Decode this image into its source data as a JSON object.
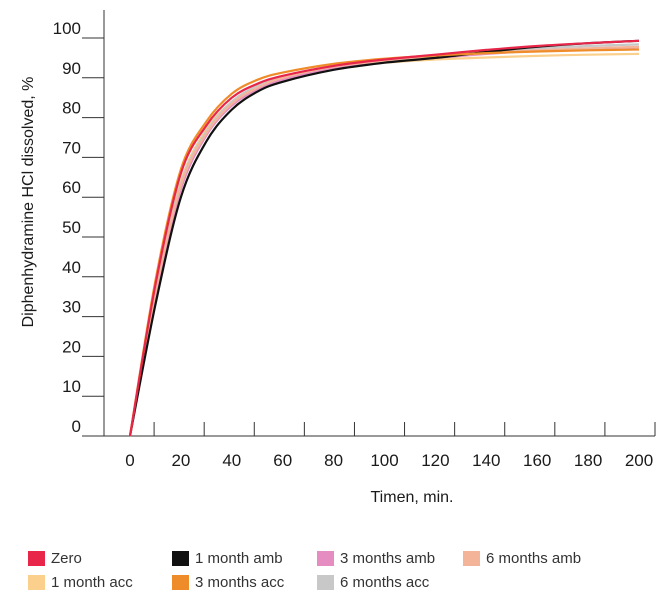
{
  "chart_data": {
    "type": "line",
    "title": "",
    "xlabel": "Timen, min.",
    "ylabel": "Diphenhydramine HCl dissolved, %",
    "xlim": [
      0,
      200
    ],
    "ylim": [
      0,
      100
    ],
    "x_ticks": [
      "0",
      "20",
      "40",
      "60",
      "80",
      "100",
      "120",
      "140",
      "160",
      "180",
      "200"
    ],
    "y_ticks": [
      "0",
      "10",
      "20",
      "30",
      "40",
      "50",
      "60",
      "70",
      "80",
      "90",
      "100"
    ],
    "grid": false,
    "legend_position": "bottom",
    "series": [
      {
        "name": "Zero",
        "color": "#e8264a",
        "x": [
          0,
          10,
          20,
          30,
          40,
          50,
          60,
          80,
          100,
          120,
          140,
          160,
          180,
          200
        ],
        "y": [
          0,
          38,
          66,
          78,
          85,
          88.5,
          90.5,
          93,
          94.6,
          95.8,
          97,
          98,
          98.7,
          99.3
        ]
      },
      {
        "name": "1 month amb",
        "color": "#111111",
        "x": [
          0,
          10,
          20,
          30,
          40,
          50,
          60,
          80,
          100,
          120,
          140,
          160,
          180,
          200
        ],
        "y": [
          0,
          33,
          60,
          74,
          82,
          86.5,
          89,
          92,
          93.8,
          95,
          96.5,
          97.8,
          98.7,
          99.3
        ]
      },
      {
        "name": "3 months amb",
        "color": "#e58cc0",
        "x": [
          0,
          10,
          20,
          30,
          40,
          50,
          60,
          80,
          100,
          120,
          140,
          160,
          180,
          200
        ],
        "y": [
          0,
          35,
          62,
          75.5,
          83,
          87,
          89.5,
          92.5,
          94,
          95,
          96,
          96.8,
          97.3,
          97.7
        ]
      },
      {
        "name": "6 months amb",
        "color": "#f3b49a",
        "x": [
          0,
          10,
          20,
          30,
          40,
          50,
          60,
          80,
          100,
          120,
          140,
          160,
          180,
          200
        ],
        "y": [
          0,
          36,
          63,
          76,
          83.5,
          87.5,
          90,
          92.8,
          94.3,
          95.3,
          96.2,
          96.9,
          97.4,
          97.8
        ]
      },
      {
        "name": "1 month acc",
        "color": "#fbd08c",
        "x": [
          0,
          10,
          20,
          30,
          40,
          50,
          60,
          80,
          100,
          120,
          140,
          160,
          180,
          200
        ],
        "y": [
          0,
          37,
          64,
          77,
          84,
          88,
          90,
          92.5,
          93.8,
          94.6,
          95.1,
          95.5,
          95.8,
          96
        ]
      },
      {
        "name": "3 months acc",
        "color": "#ef8c2a",
        "x": [
          0,
          10,
          20,
          30,
          40,
          50,
          60,
          80,
          100,
          120,
          140,
          160,
          180,
          200
        ],
        "y": [
          0,
          39,
          67,
          79,
          86,
          89.5,
          91.3,
          93.5,
          94.8,
          95.6,
          96.2,
          96.6,
          96.9,
          97.1
        ]
      },
      {
        "name": "6 months acc",
        "color": "#c8c8c8",
        "x": [
          0,
          10,
          20,
          30,
          40,
          50,
          60,
          80,
          100,
          120,
          140,
          160,
          180,
          200
        ],
        "y": [
          0,
          36.5,
          63.5,
          76.5,
          84,
          88,
          90.3,
          93,
          94.5,
          95.6,
          96.6,
          97.4,
          98,
          98.4
        ]
      }
    ]
  }
}
